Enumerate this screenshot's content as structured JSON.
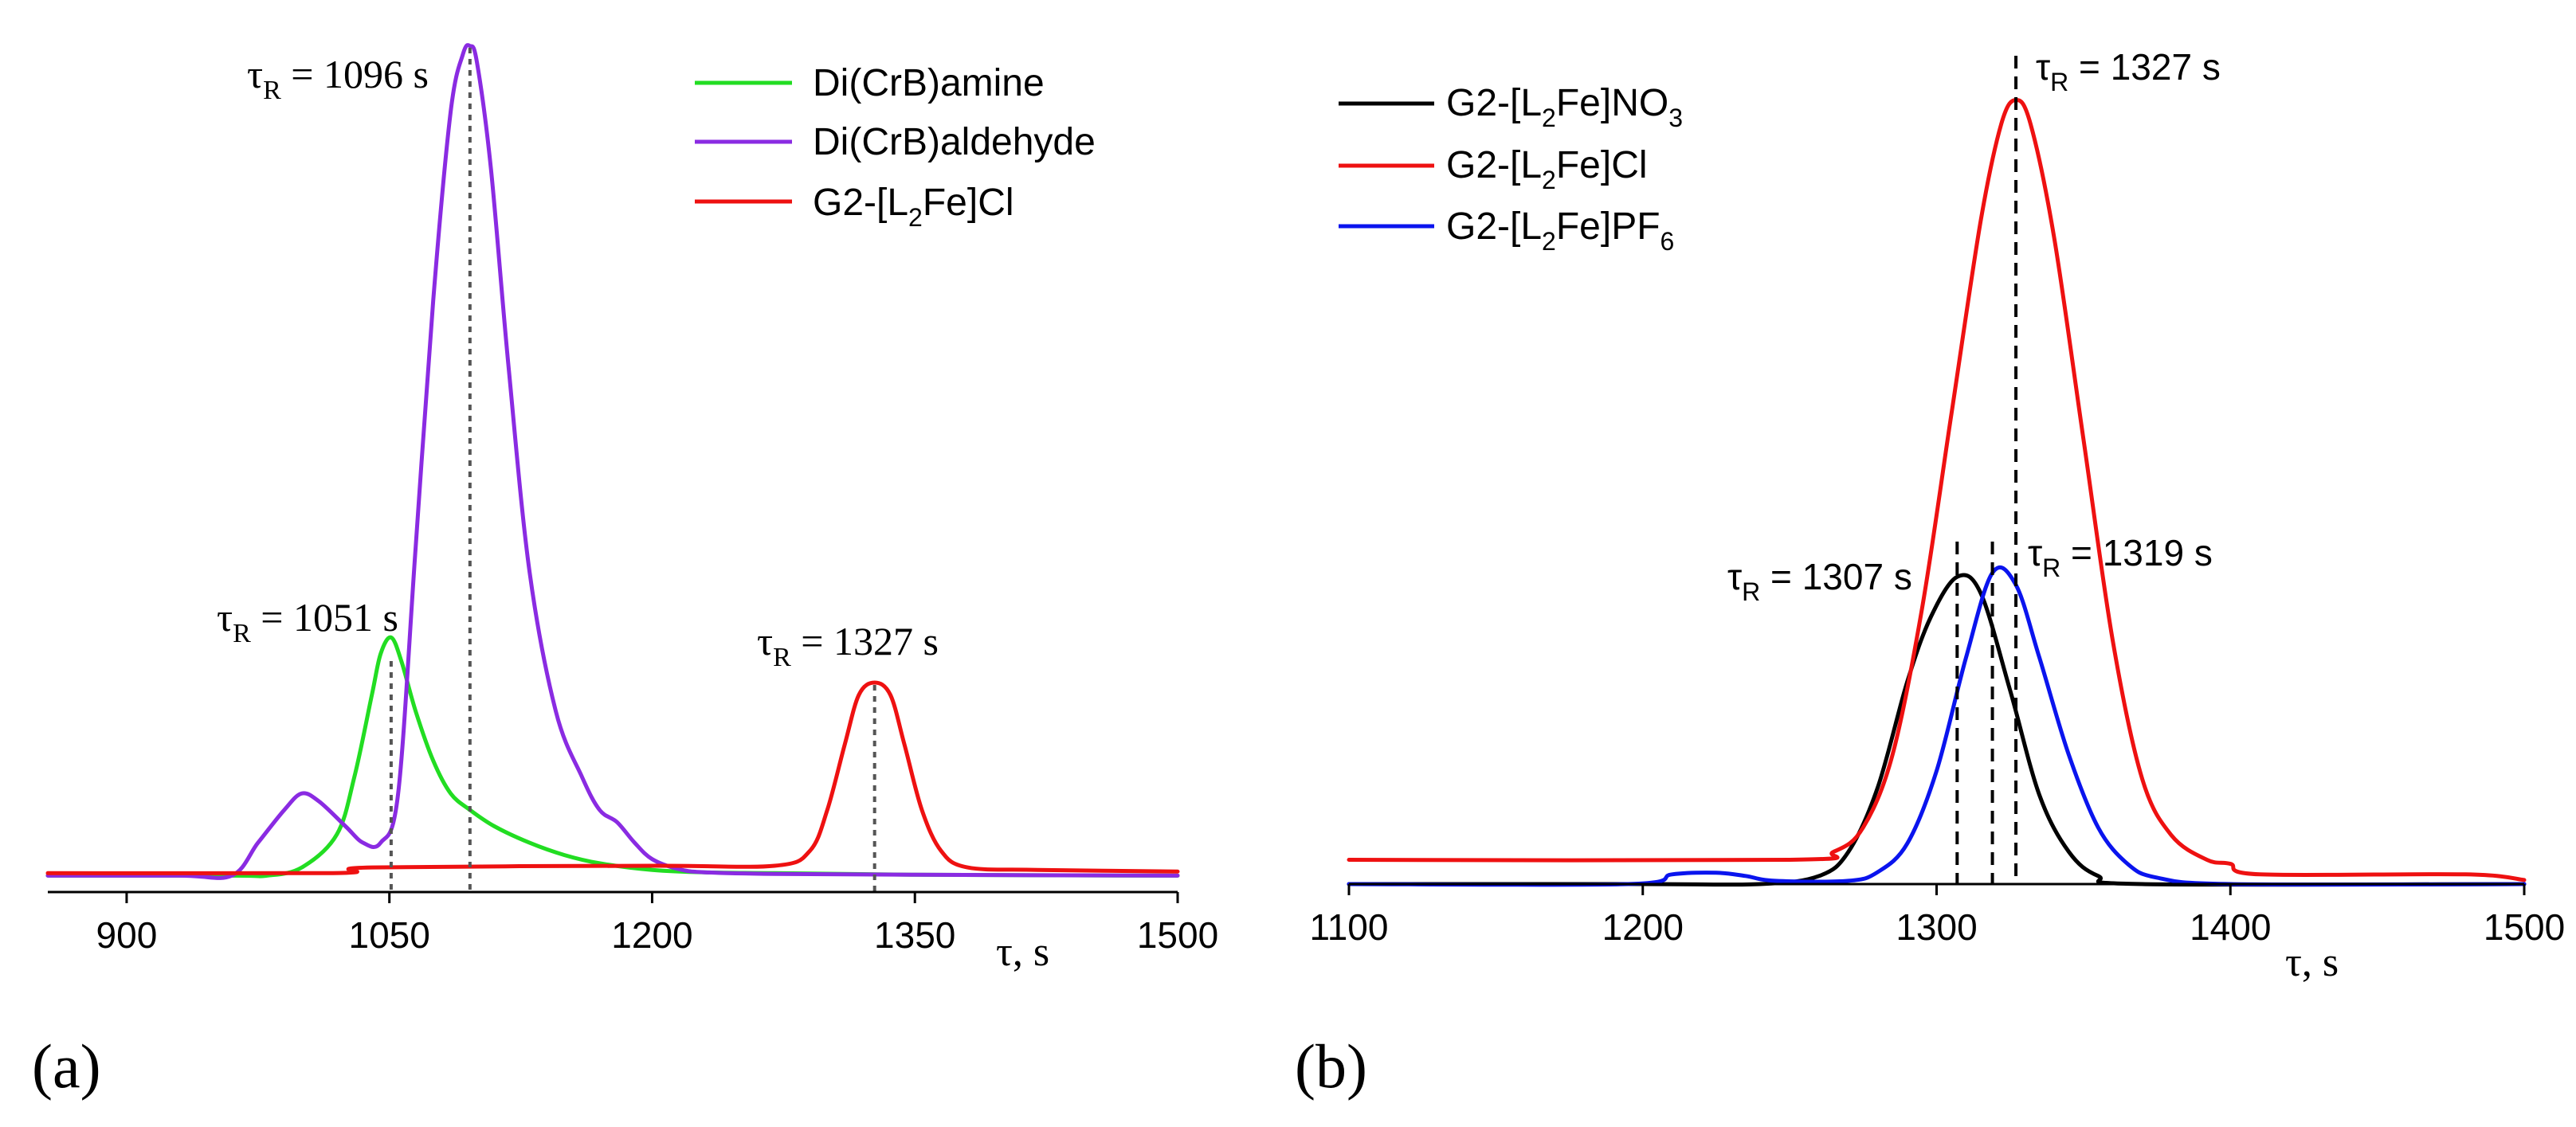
{
  "chart_data": [
    {
      "type": "line",
      "panel_label": "(a)",
      "xlabel": "τ, s",
      "ylabel": "",
      "xlim": [
        855,
        1500
      ],
      "ylim": [
        -0.02,
        1.0
      ],
      "x_ticks": [
        900,
        1050,
        1200,
        1350,
        1500
      ],
      "grid": false,
      "legend_position": "top-right",
      "series": [
        {
          "name": "Di(CrB)amine",
          "color": "#22dd22",
          "x": [
            855,
            960,
            980,
            1000,
            1020,
            1030,
            1040,
            1045,
            1051,
            1057,
            1065,
            1075,
            1085,
            1096,
            1110,
            1130,
            1150,
            1170,
            1200,
            1230,
            1270,
            1350,
            1500
          ],
          "y": [
            0.0,
            0.0,
            0.0,
            0.01,
            0.05,
            0.12,
            0.22,
            0.27,
            0.29,
            0.26,
            0.2,
            0.14,
            0.1,
            0.08,
            0.06,
            0.04,
            0.025,
            0.015,
            0.007,
            0.004,
            0.003,
            0.001,
            0.0
          ]
        },
        {
          "name": "Di(CrB)aldehyde",
          "color": "#8a2be2",
          "x": [
            855,
            930,
            960,
            975,
            990,
            1000,
            1010,
            1025,
            1035,
            1045,
            1055,
            1065,
            1075,
            1085,
            1092,
            1096,
            1100,
            1108,
            1118,
            1130,
            1145,
            1160,
            1170,
            1180,
            1190,
            1200,
            1215,
            1230,
            1270,
            1350,
            1500
          ],
          "y": [
            0.0,
            0.0,
            0.0,
            0.04,
            0.08,
            0.1,
            0.09,
            0.06,
            0.04,
            0.04,
            0.1,
            0.4,
            0.7,
            0.93,
            1.0,
            1.01,
            0.99,
            0.86,
            0.62,
            0.37,
            0.2,
            0.12,
            0.08,
            0.065,
            0.04,
            0.02,
            0.008,
            0.004,
            0.002,
            0.001,
            0.0
          ]
        },
        {
          "name": "G2-[L2Fe]Cl",
          "color": "#ee1111",
          "x": [
            855,
            990,
            1030,
            1040,
            1200,
            1270,
            1290,
            1300,
            1310,
            1318,
            1327,
            1336,
            1344,
            1354,
            1365,
            1380,
            1420,
            1500
          ],
          "y": [
            0.003,
            0.003,
            0.004,
            0.01,
            0.012,
            0.012,
            0.03,
            0.08,
            0.16,
            0.22,
            0.235,
            0.22,
            0.16,
            0.08,
            0.03,
            0.01,
            0.007,
            0.005
          ]
        }
      ],
      "annotations": [
        {
          "x": 1096,
          "text_main": "τ",
          "text_sub": "R",
          "text_rest": " = 1096 s"
        },
        {
          "x": 1051,
          "text_main": "τ",
          "text_sub": "R",
          "text_rest": " = 1051 s"
        },
        {
          "x": 1327,
          "text_main": "τ",
          "text_sub": "R",
          "text_rest": " = 1327 s"
        }
      ]
    },
    {
      "type": "line",
      "panel_label": "(b)",
      "xlabel": "τ, s",
      "ylabel": "",
      "xlim": [
        1100,
        1500
      ],
      "ylim": [
        0.0,
        1.0
      ],
      "x_ticks": [
        1100,
        1200,
        1300,
        1400,
        1500
      ],
      "grid": false,
      "legend_position": "top-left",
      "series": [
        {
          "name": "G2-[L2Fe]NO3",
          "name_main": "G2-[L",
          "name_sub1": "2",
          "name_mid": "Fe]NO",
          "name_sub2": "3",
          "color": "#000000",
          "x": [
            1100,
            1200,
            1240,
            1260,
            1270,
            1280,
            1290,
            1298,
            1307,
            1315,
            1325,
            1335,
            1345,
            1355,
            1370,
            1500
          ],
          "y": [
            0.0,
            0.0,
            0.0,
            0.01,
            0.04,
            0.12,
            0.25,
            0.33,
            0.38,
            0.36,
            0.24,
            0.11,
            0.04,
            0.01,
            0.0,
            0.0
          ]
        },
        {
          "name": "G2-[L2Fe]Cl",
          "name_main": "G2-[L",
          "name_sub1": "2",
          "name_mid": "Fe]Cl",
          "name_sub2": "",
          "color": "#ee1111",
          "x": [
            1100,
            1250,
            1265,
            1275,
            1285,
            1295,
            1305,
            1315,
            1322,
            1327,
            1332,
            1340,
            1350,
            1360,
            1370,
            1380,
            1392,
            1400,
            1410,
            1480,
            1500
          ],
          "y": [
            0.03,
            0.03,
            0.04,
            0.07,
            0.16,
            0.34,
            0.58,
            0.82,
            0.94,
            0.97,
            0.94,
            0.8,
            0.55,
            0.3,
            0.13,
            0.06,
            0.03,
            0.025,
            0.012,
            0.012,
            0.005
          ]
        },
        {
          "name": "G2-[L2Fe]PF6",
          "name_main": "G2-[L",
          "name_sub1": "2",
          "name_mid": "Fe]PF",
          "name_sub2": "6",
          "color": "#0a14ee",
          "x": [
            1100,
            1195,
            1210,
            1225,
            1235,
            1245,
            1270,
            1280,
            1290,
            1300,
            1310,
            1319,
            1327,
            1335,
            1345,
            1355,
            1365,
            1375,
            1400,
            1500
          ],
          "y": [
            0.0,
            0.0,
            0.012,
            0.014,
            0.01,
            0.004,
            0.004,
            0.015,
            0.05,
            0.14,
            0.28,
            0.385,
            0.37,
            0.28,
            0.16,
            0.07,
            0.025,
            0.008,
            0.0,
            0.0
          ]
        }
      ],
      "annotations": [
        {
          "x": 1327,
          "text_main": "τ",
          "text_sub": "R",
          "text_rest": " = 1327 s"
        },
        {
          "x": 1307,
          "text_main": "τ",
          "text_sub": "R",
          "text_rest": " = 1307 s"
        },
        {
          "x": 1319,
          "text_main": "τ",
          "text_sub": "R",
          "text_rest": " = 1319 s"
        }
      ]
    }
  ]
}
